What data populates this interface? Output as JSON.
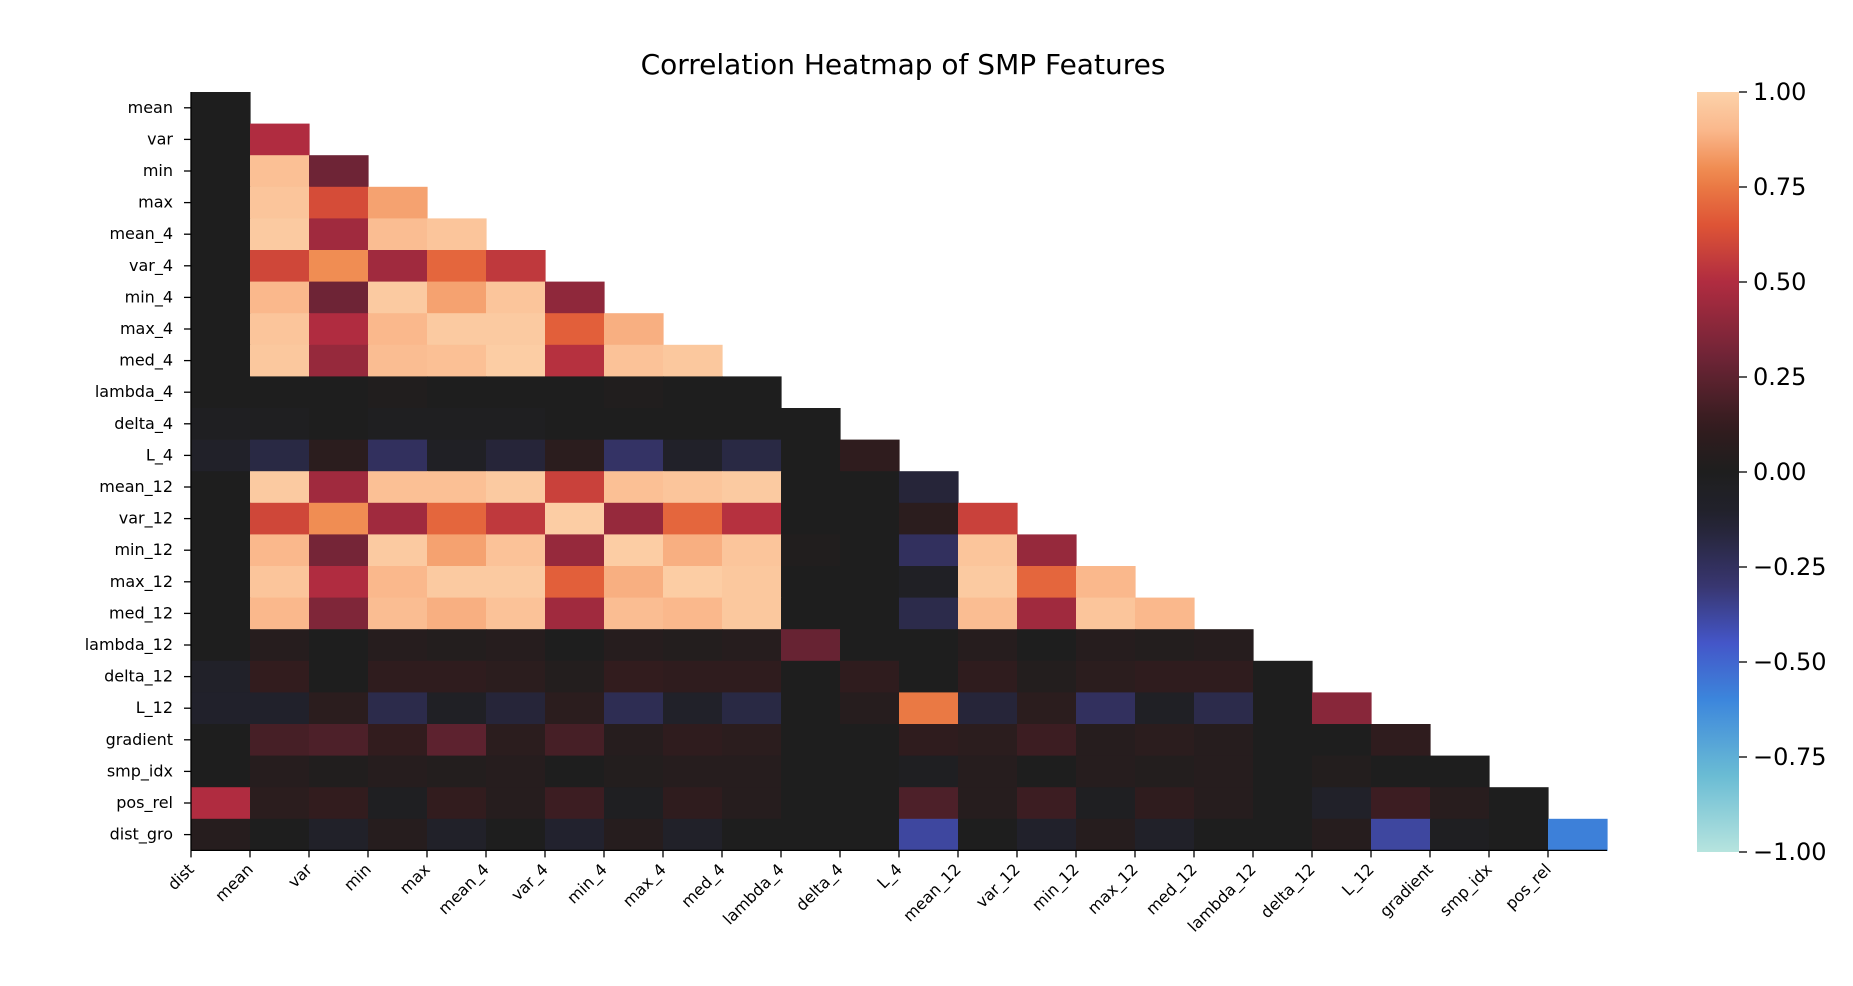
{
  "chart_data": {
    "type": "heatmap",
    "title": "Correlation Heatmap of SMP Features",
    "row_labels": [
      "mean",
      "var",
      "min",
      "max",
      "mean_4",
      "var_4",
      "min_4",
      "max_4",
      "med_4",
      "lambda_4",
      "delta_4",
      "L_4",
      "mean_12",
      "var_12",
      "min_12",
      "max_12",
      "med_12",
      "lambda_12",
      "delta_12",
      "L_12",
      "gradient",
      "smp_idx",
      "pos_rel",
      "dist_gro"
    ],
    "col_labels": [
      "dist",
      "mean",
      "var",
      "min",
      "max",
      "mean_4",
      "var_4",
      "min_4",
      "max_4",
      "med_4",
      "lambda_4",
      "delta_4",
      "L_4",
      "mean_12",
      "var_12",
      "min_12",
      "max_12",
      "med_12",
      "lambda_12",
      "delta_12",
      "L_12",
      "gradient",
      "smp_idx",
      "pos_rel"
    ],
    "colorbar": {
      "min": -1.0,
      "max": 1.0,
      "ticks": [
        "1.00",
        "0.75",
        "0.50",
        "0.25",
        "0.00",
        "−0.25",
        "−0.50",
        "−0.75",
        "−1.00"
      ],
      "tick_values": [
        1.0,
        0.75,
        0.5,
        0.25,
        0.0,
        -0.25,
        -0.5,
        -0.75,
        -1.0
      ]
    },
    "values": [
      [
        0.0
      ],
      [
        0.0,
        0.5
      ],
      [
        0.0,
        0.93,
        0.3
      ],
      [
        0.0,
        0.95,
        0.62,
        0.85
      ],
      [
        0.0,
        0.97,
        0.45,
        0.92,
        0.95
      ],
      [
        0.0,
        0.6,
        0.8,
        0.45,
        0.7,
        0.55
      ],
      [
        0.0,
        0.9,
        0.3,
        0.97,
        0.85,
        0.95,
        0.4
      ],
      [
        0.0,
        0.95,
        0.5,
        0.9,
        0.97,
        0.97,
        0.68,
        0.88
      ],
      [
        0.0,
        0.96,
        0.42,
        0.92,
        0.93,
        0.98,
        0.52,
        0.94,
        0.96
      ],
      [
        0.0,
        0.0,
        0.0,
        0.02,
        0.0,
        0.0,
        0.0,
        0.02,
        0.0,
        0.0
      ],
      [
        -0.03,
        -0.02,
        0.0,
        -0.02,
        -0.02,
        -0.02,
        0.0,
        0.0,
        0.0,
        0.0,
        0.0
      ],
      [
        -0.08,
        -0.18,
        0.08,
        -0.25,
        -0.05,
        -0.15,
        0.08,
        -0.27,
        -0.08,
        -0.18,
        0.0,
        0.1
      ],
      [
        0.0,
        0.97,
        0.45,
        0.93,
        0.93,
        0.97,
        0.58,
        0.93,
        0.95,
        0.97,
        0.0,
        0.0,
        -0.15
      ],
      [
        0.0,
        0.6,
        0.8,
        0.45,
        0.7,
        0.55,
        0.98,
        0.42,
        0.7,
        0.52,
        0.0,
        0.0,
        0.08,
        0.58
      ],
      [
        0.0,
        0.9,
        0.32,
        0.97,
        0.85,
        0.94,
        0.42,
        0.98,
        0.88,
        0.95,
        0.02,
        0.0,
        -0.25,
        0.95,
        0.42
      ],
      [
        0.0,
        0.95,
        0.5,
        0.9,
        0.97,
        0.97,
        0.68,
        0.88,
        0.98,
        0.96,
        0.0,
        0.0,
        -0.05,
        0.97,
        0.7,
        0.9
      ],
      [
        0.0,
        0.9,
        0.35,
        0.92,
        0.88,
        0.94,
        0.45,
        0.92,
        0.9,
        0.96,
        0.0,
        0.0,
        -0.2,
        0.92,
        0.45,
        0.95,
        0.9
      ],
      [
        0.0,
        0.05,
        0.0,
        0.05,
        0.03,
        0.05,
        0.0,
        0.05,
        0.03,
        0.05,
        0.28,
        0.0,
        0.0,
        0.05,
        0.0,
        0.05,
        0.03,
        0.05
      ],
      [
        -0.08,
        0.12,
        0.0,
        0.1,
        0.1,
        0.08,
        0.03,
        0.12,
        0.1,
        0.1,
        0.0,
        0.1,
        0.0,
        0.1,
        0.03,
        0.08,
        0.1,
        0.1,
        0.0
      ],
      [
        -0.1,
        -0.1,
        0.08,
        -0.2,
        -0.05,
        -0.15,
        0.08,
        -0.22,
        -0.08,
        -0.18,
        0.0,
        0.05,
        0.75,
        -0.15,
        0.08,
        -0.25,
        -0.05,
        -0.2,
        0.0,
        0.38
      ],
      [
        0.0,
        0.18,
        0.2,
        0.12,
        0.25,
        0.08,
        0.18,
        0.05,
        0.1,
        0.08,
        0.0,
        0.0,
        0.1,
        0.08,
        0.15,
        0.05,
        0.08,
        0.05,
        0.0,
        0.0,
        0.1
      ],
      [
        0.0,
        0.05,
        0.02,
        0.05,
        0.03,
        0.05,
        0.0,
        0.03,
        0.05,
        0.05,
        0.0,
        0.0,
        -0.03,
        0.05,
        0.0,
        0.05,
        0.03,
        0.05,
        0.0,
        0.03,
        0.0,
        0.0
      ],
      [
        0.5,
        0.08,
        0.12,
        -0.03,
        0.12,
        0.05,
        0.15,
        -0.03,
        0.1,
        0.05,
        0.0,
        0.0,
        0.2,
        0.05,
        0.15,
        -0.03,
        0.1,
        0.05,
        0.0,
        -0.08,
        0.15,
        0.06,
        0.0
      ],
      [
        0.05,
        0.0,
        -0.08,
        0.05,
        -0.08,
        0.0,
        -0.12,
        0.05,
        -0.08,
        0.0,
        0.0,
        0.0,
        -0.38,
        0.0,
        -0.1,
        0.05,
        -0.08,
        0.0,
        0.0,
        0.05,
        -0.38,
        -0.03,
        0.0,
        -0.58
      ]
    ]
  }
}
